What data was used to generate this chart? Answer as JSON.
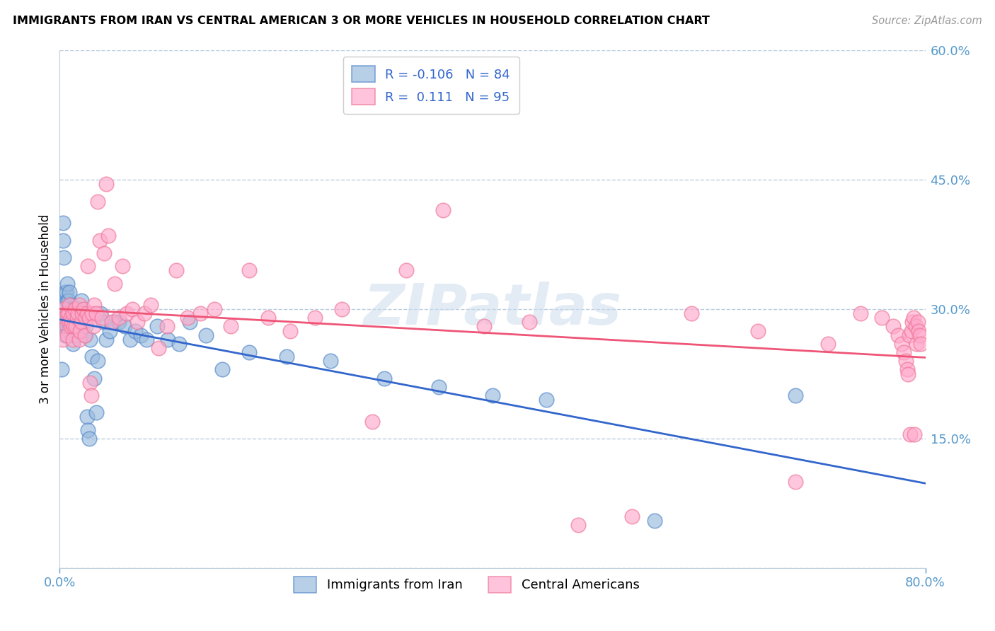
{
  "title": "IMMIGRANTS FROM IRAN VS CENTRAL AMERICAN 3 OR MORE VEHICLES IN HOUSEHOLD CORRELATION CHART",
  "source": "Source: ZipAtlas.com",
  "ylabel": "3 or more Vehicles in Household",
  "xmin": 0.0,
  "xmax": 0.8,
  "ymin": 0.0,
  "ymax": 0.6,
  "blue_R": -0.106,
  "blue_N": 84,
  "pink_R": 0.111,
  "pink_N": 95,
  "blue_color": "#99BBDD",
  "pink_color": "#FFAACC",
  "blue_edge_color": "#5588CC",
  "pink_edge_color": "#EE7799",
  "blue_line_color": "#3366CC",
  "pink_line_color": "#EE5577",
  "axis_color": "#5599CC",
  "grid_color": "#BBCCDD",
  "watermark": "ZIPatlas",
  "legend_label_blue": "Immigrants from Iran",
  "legend_label_pink": "Central Americans",
  "blue_points_x": [
    0.002,
    0.003,
    0.003,
    0.004,
    0.004,
    0.005,
    0.005,
    0.005,
    0.006,
    0.006,
    0.006,
    0.007,
    0.007,
    0.007,
    0.008,
    0.008,
    0.008,
    0.009,
    0.009,
    0.009,
    0.009,
    0.01,
    0.01,
    0.01,
    0.011,
    0.011,
    0.011,
    0.012,
    0.012,
    0.012,
    0.013,
    0.013,
    0.014,
    0.014,
    0.014,
    0.015,
    0.015,
    0.016,
    0.016,
    0.017,
    0.017,
    0.018,
    0.018,
    0.019,
    0.02,
    0.02,
    0.021,
    0.022,
    0.023,
    0.024,
    0.025,
    0.026,
    0.027,
    0.028,
    0.03,
    0.032,
    0.034,
    0.035,
    0.038,
    0.04,
    0.043,
    0.046,
    0.05,
    0.055,
    0.06,
    0.065,
    0.07,
    0.075,
    0.08,
    0.09,
    0.1,
    0.11,
    0.12,
    0.135,
    0.15,
    0.175,
    0.21,
    0.25,
    0.3,
    0.35,
    0.4,
    0.45,
    0.55,
    0.68
  ],
  "blue_points_y": [
    0.23,
    0.38,
    0.4,
    0.36,
    0.305,
    0.32,
    0.29,
    0.27,
    0.295,
    0.285,
    0.32,
    0.33,
    0.31,
    0.28,
    0.3,
    0.31,
    0.275,
    0.295,
    0.28,
    0.3,
    0.32,
    0.295,
    0.305,
    0.29,
    0.295,
    0.285,
    0.3,
    0.28,
    0.295,
    0.26,
    0.285,
    0.3,
    0.295,
    0.27,
    0.28,
    0.3,
    0.285,
    0.295,
    0.275,
    0.29,
    0.285,
    0.28,
    0.3,
    0.275,
    0.31,
    0.285,
    0.295,
    0.285,
    0.27,
    0.28,
    0.175,
    0.16,
    0.15,
    0.265,
    0.245,
    0.22,
    0.18,
    0.24,
    0.295,
    0.285,
    0.265,
    0.275,
    0.285,
    0.285,
    0.28,
    0.265,
    0.275,
    0.27,
    0.265,
    0.28,
    0.265,
    0.26,
    0.285,
    0.27,
    0.23,
    0.25,
    0.245,
    0.24,
    0.22,
    0.21,
    0.2,
    0.195,
    0.055,
    0.2
  ],
  "pink_points_x": [
    0.003,
    0.004,
    0.005,
    0.006,
    0.007,
    0.007,
    0.008,
    0.009,
    0.009,
    0.01,
    0.01,
    0.011,
    0.012,
    0.012,
    0.013,
    0.014,
    0.015,
    0.016,
    0.017,
    0.018,
    0.018,
    0.019,
    0.02,
    0.021,
    0.022,
    0.023,
    0.024,
    0.025,
    0.026,
    0.027,
    0.028,
    0.029,
    0.03,
    0.031,
    0.032,
    0.034,
    0.035,
    0.037,
    0.039,
    0.041,
    0.043,
    0.045,
    0.048,
    0.051,
    0.055,
    0.058,
    0.062,
    0.067,
    0.072,
    0.078,
    0.084,
    0.091,
    0.099,
    0.108,
    0.118,
    0.13,
    0.143,
    0.158,
    0.175,
    0.193,
    0.213,
    0.236,
    0.261,
    0.289,
    0.32,
    0.354,
    0.392,
    0.434,
    0.479,
    0.529,
    0.584,
    0.645,
    0.68,
    0.71,
    0.74,
    0.76,
    0.77,
    0.775,
    0.778,
    0.78,
    0.782,
    0.783,
    0.784,
    0.785,
    0.786,
    0.787,
    0.788,
    0.789,
    0.79,
    0.791,
    0.792,
    0.793,
    0.794,
    0.795,
    0.796
  ],
  "pink_points_y": [
    0.265,
    0.3,
    0.29,
    0.28,
    0.295,
    0.27,
    0.295,
    0.285,
    0.305,
    0.29,
    0.28,
    0.285,
    0.295,
    0.265,
    0.28,
    0.3,
    0.28,
    0.29,
    0.295,
    0.305,
    0.265,
    0.275,
    0.285,
    0.295,
    0.3,
    0.27,
    0.29,
    0.295,
    0.35,
    0.29,
    0.215,
    0.2,
    0.295,
    0.28,
    0.305,
    0.295,
    0.425,
    0.38,
    0.29,
    0.365,
    0.445,
    0.385,
    0.285,
    0.33,
    0.29,
    0.35,
    0.295,
    0.3,
    0.285,
    0.295,
    0.305,
    0.255,
    0.28,
    0.345,
    0.29,
    0.295,
    0.3,
    0.28,
    0.345,
    0.29,
    0.275,
    0.29,
    0.3,
    0.17,
    0.345,
    0.415,
    0.28,
    0.285,
    0.05,
    0.06,
    0.295,
    0.275,
    0.1,
    0.26,
    0.295,
    0.29,
    0.28,
    0.27,
    0.26,
    0.25,
    0.24,
    0.23,
    0.225,
    0.27,
    0.155,
    0.275,
    0.285,
    0.29,
    0.155,
    0.28,
    0.26,
    0.285,
    0.275,
    0.27,
    0.26
  ]
}
